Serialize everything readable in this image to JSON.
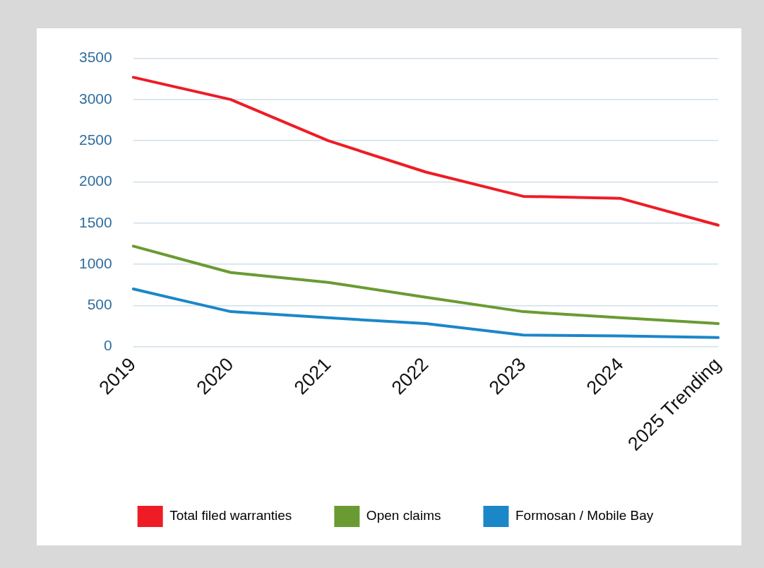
{
  "chart_data": {
    "type": "line",
    "categories": [
      "2019",
      "2020",
      "2021",
      "2022",
      "2023",
      "2024",
      "2025 Trending"
    ],
    "series": [
      {
        "name": "Total filed warranties",
        "color": "#ee1c25",
        "values": [
          3270,
          3000,
          2500,
          2120,
          1825,
          1800,
          1475
        ]
      },
      {
        "name": "Open claims",
        "color": "#6a9a32",
        "values": [
          1220,
          900,
          780,
          600,
          425,
          350,
          280
        ]
      },
      {
        "name": "Formosan / Mobile Bay",
        "color": "#1b87c9",
        "values": [
          700,
          425,
          350,
          280,
          140,
          130,
          110
        ]
      }
    ],
    "ylim": [
      0,
      3500
    ],
    "yticks": [
      0,
      500,
      1000,
      1500,
      2000,
      2500,
      3000,
      3500
    ],
    "grid": "y",
    "legend": "bottom",
    "marker": "none",
    "line_style": "solid"
  }
}
